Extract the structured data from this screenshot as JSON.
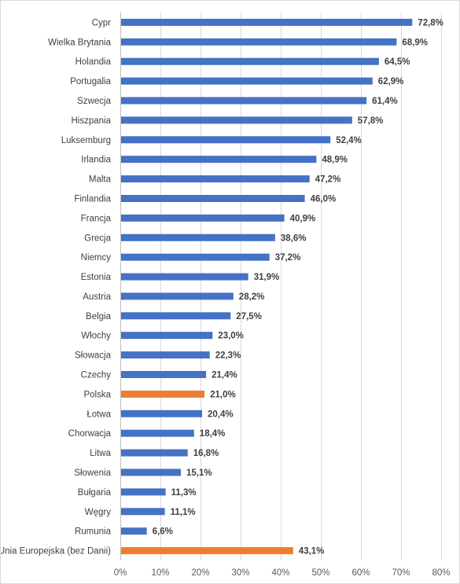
{
  "chart_data": {
    "type": "bar",
    "orientation": "horizontal",
    "categories": [
      "Cypr",
      "Wielka Brytania",
      "Holandia",
      "Portugalia",
      "Szwecja",
      "Hiszpania",
      "Luksemburg",
      "Irlandia",
      "Malta",
      "Finlandia",
      "Francja",
      "Grecja",
      "Niemcy",
      "Estonia",
      "Austria",
      "Belgia",
      "Włochy",
      "Słowacja",
      "Czechy",
      "Polska",
      "Łotwa",
      "Chorwacja",
      "Litwa",
      "Słowenia",
      "Bułgaria",
      "Węgry",
      "Rumunia",
      "Unia Europejska (bez Danii)"
    ],
    "values": [
      72.8,
      68.9,
      64.5,
      62.9,
      61.4,
      57.8,
      52.4,
      48.9,
      47.2,
      46.0,
      40.9,
      38.6,
      37.2,
      31.9,
      28.2,
      27.5,
      23.0,
      22.3,
      21.4,
      21.0,
      20.4,
      18.4,
      16.8,
      15.1,
      11.3,
      11.1,
      6.6,
      43.1
    ],
    "value_labels": [
      "72,8%",
      "68,9%",
      "64,5%",
      "62,9%",
      "61,4%",
      "57,8%",
      "52,4%",
      "48,9%",
      "47,2%",
      "46,0%",
      "40,9%",
      "38,6%",
      "37,2%",
      "31,9%",
      "28,2%",
      "27,5%",
      "23,0%",
      "22,3%",
      "21,4%",
      "21,0%",
      "20,4%",
      "18,4%",
      "16,8%",
      "15,1%",
      "11,3%",
      "11,1%",
      "6,6%",
      "43,1%"
    ],
    "highlighted": [
      "Polska",
      "Unia Europejska (bez Danii)"
    ],
    "colors": {
      "default": "#4472c4",
      "highlight": "#ed7d31"
    },
    "xlim": [
      0,
      80
    ],
    "x_ticks": [
      0,
      10,
      20,
      30,
      40,
      50,
      60,
      70,
      80
    ],
    "x_tick_labels": [
      "0%",
      "10%",
      "20%",
      "30%",
      "40%",
      "50%",
      "60%",
      "70%",
      "80%"
    ],
    "grid": "vertical",
    "title": "",
    "xlabel": "",
    "ylabel": ""
  }
}
